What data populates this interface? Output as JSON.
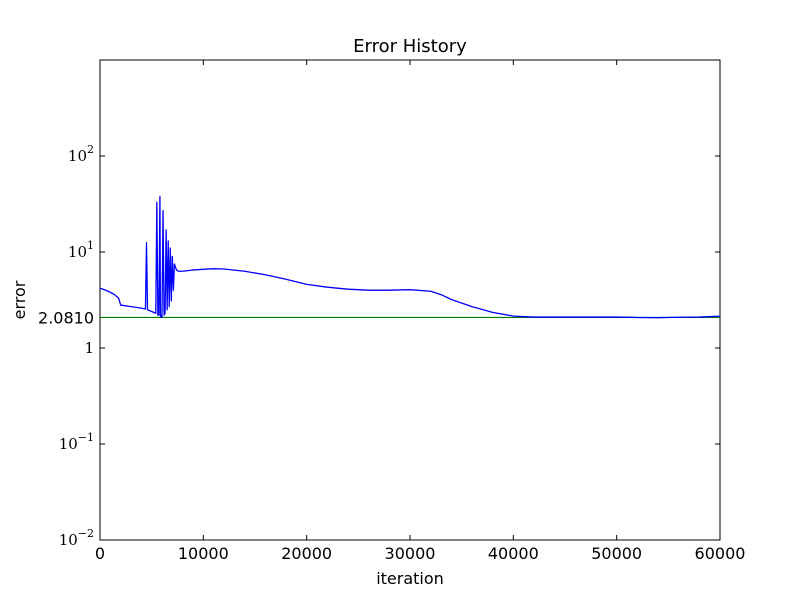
{
  "chart_data": {
    "type": "line",
    "title": "Error History",
    "xlabel": "iteration",
    "ylabel": "error",
    "xlim": [
      0,
      60000
    ],
    "ylim": [
      0.01,
      1000
    ],
    "yscale": "log",
    "grid": false,
    "x_ticks": [
      0,
      10000,
      20000,
      30000,
      40000,
      50000,
      60000
    ],
    "x_tick_labels": [
      "0",
      "10000",
      "20000",
      "30000",
      "40000",
      "50000",
      "60000"
    ],
    "y_ticks": [
      {
        "value": 0.01,
        "base": "10",
        "exp": "−2"
      },
      {
        "value": 0.1,
        "base": "10",
        "exp": "−1"
      },
      {
        "value": 1,
        "base": "1",
        "exp": ""
      },
      {
        "value": 10,
        "base": "10",
        "exp": "1"
      },
      {
        "value": 100,
        "base": "10",
        "exp": "2"
      }
    ],
    "reference_line": {
      "value": 2.081,
      "label": "2.0810",
      "color": "#008000"
    },
    "series": [
      {
        "color": "#0000ff",
        "x": [
          0,
          800,
          1400,
          1800,
          2000,
          4000,
          4400,
          4500,
          4600,
          5000,
          5400,
          5500,
          5600,
          5700,
          5800,
          5850,
          5900,
          6000,
          6100,
          6200,
          6300,
          6400,
          6500,
          6600,
          6700,
          6800,
          6900,
          7000,
          7100,
          7200,
          7400,
          7600,
          7800,
          8000,
          9000,
          10000,
          11000,
          12000,
          14000,
          16000,
          18000,
          20000,
          22000,
          24000,
          26000,
          28000,
          30000,
          32000,
          33000,
          34000,
          36000,
          38000,
          40000,
          42000,
          44000,
          46000,
          48000,
          50000,
          52000,
          54000,
          56000,
          58000,
          60000
        ],
        "y": [
          4.2,
          3.9,
          3.6,
          3.3,
          2.8,
          2.6,
          2.55,
          12.5,
          2.5,
          2.4,
          2.3,
          33,
          2.2,
          2.2,
          38,
          2.1,
          2.2,
          2.1,
          27,
          2.2,
          2.3,
          17,
          2.5,
          13,
          2.7,
          11,
          3.1,
          9,
          4.0,
          7.5,
          6.5,
          6.3,
          6.3,
          6.3,
          6.5,
          6.6,
          6.7,
          6.65,
          6.3,
          5.8,
          5.2,
          4.6,
          4.3,
          4.1,
          4.0,
          4.0,
          4.05,
          3.9,
          3.6,
          3.2,
          2.7,
          2.35,
          2.15,
          2.1,
          2.1,
          2.1,
          2.1,
          2.1,
          2.08,
          2.07,
          2.09,
          2.1,
          2.15
        ]
      }
    ]
  }
}
